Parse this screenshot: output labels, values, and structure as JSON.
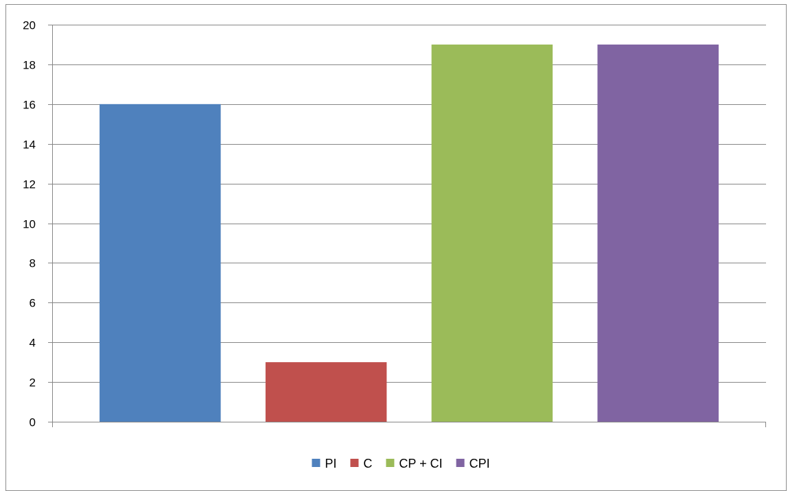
{
  "chart_data": {
    "type": "bar",
    "categories": [
      "PI",
      "C",
      "CP + CI",
      "CPI"
    ],
    "values": [
      16,
      3,
      19,
      19
    ],
    "colors": [
      "#4f81bd",
      "#c0504d",
      "#9bbb59",
      "#8064a2"
    ],
    "title": "",
    "xlabel": "",
    "ylabel": "",
    "ylim": [
      0,
      20
    ],
    "yticks": [
      0,
      2,
      4,
      6,
      8,
      10,
      12,
      14,
      16,
      18,
      20
    ],
    "grid": true,
    "legend": {
      "placement": "bottom",
      "entries": [
        "PI",
        "C",
        "CP + CI",
        "CPI"
      ]
    }
  }
}
